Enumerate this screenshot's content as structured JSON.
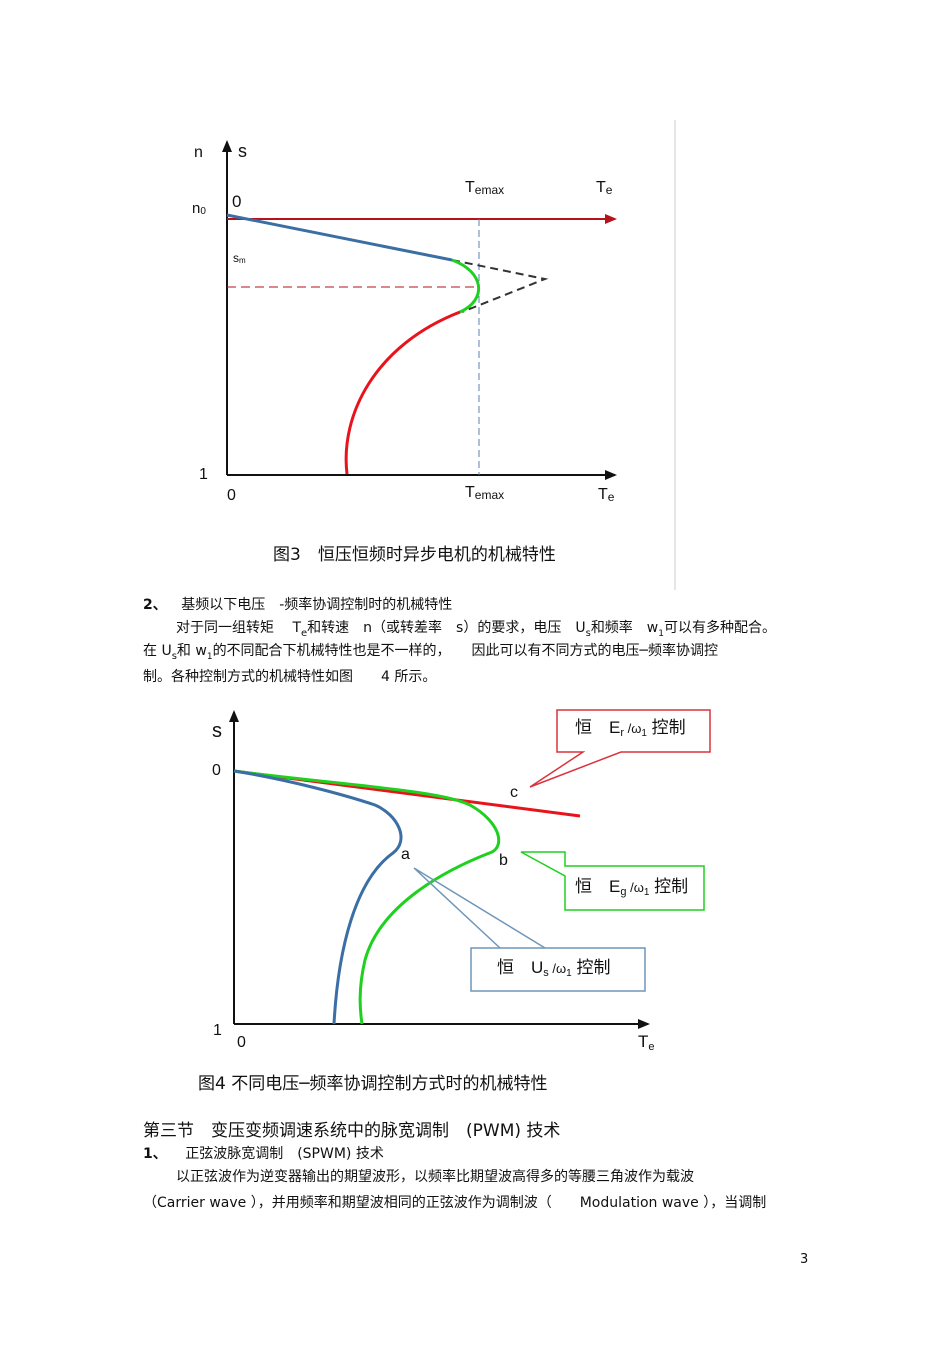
{
  "figure3": {
    "axis_n": "n",
    "axis_s": "s",
    "label_n0": "n",
    "label_n0_sub": "0",
    "label_zero_top": "0",
    "label_temax_top": "T",
    "label_temax_top_sub": "emax",
    "label_te_top": "T",
    "label_te_top_sub": "e",
    "label_sm": "s",
    "label_sm_sub": "m",
    "label_one": "1",
    "label_zero_bottom": "0",
    "label_temax_bottom": "T",
    "label_temax_bottom_sub": "emax",
    "label_te_bottom": "T",
    "label_te_bottom_sub": "e",
    "caption": "图3　恒压恒频时异步电机的机械特性",
    "colors": {
      "axis_arrow": "#b5121b",
      "upper_curve": "#3a6ea5",
      "middle_curve": "#1fd11f",
      "lower_curve": "#e8131b"
    }
  },
  "section2": {
    "heading_num": "2、",
    "heading_text": "基频以下电压　-频率协调控制时的机械特性",
    "line1": "对于同一组转矩　 T",
    "line1_sub1": "e",
    "line1_b": "和转速　n（或转差率　s）的要求，电压　U",
    "line1_sub2": "s",
    "line1_c": "和频率　w",
    "line1_sub3": "1",
    "line1_d": "可以有多种配合。",
    "line2_a": "在  U",
    "line2_sub1": "s",
    "line2_b": "和  w",
    "line2_sub2": "1",
    "line2_c": "的不同配合下机械特性也是不一样的，　　因此可以有不同方式的电压─频率协调控",
    "line3": "制。各种控制方式的机械特性如图　　4 所示。"
  },
  "figure4": {
    "axis_s": "s",
    "label_zero_top": "0",
    "label_one": "1",
    "label_zero_bottom": "0",
    "label_te": "T",
    "label_te_sub": "e",
    "label_a": "a",
    "label_b": "b",
    "label_c": "c",
    "callout_er": {
      "prefix": "恒　E",
      "sub": "r",
      "mid": " /ω",
      "sub2": "1",
      "suffix": " 控制"
    },
    "callout_eg": {
      "prefix": "恒　E",
      "sub": "g",
      "mid": " /ω",
      "sub2": "1",
      "suffix": " 控制"
    },
    "callout_us": {
      "prefix": "恒　U",
      "sub": "s",
      "mid": " /ω",
      "sub2": "1",
      "suffix": " 控制"
    },
    "caption": "图4  不同电压─频率协调控制方式时的机械特性",
    "colors": {
      "curve_a": "#3a6ea5",
      "curve_b": "#1fd11f",
      "curve_c": "#e8131b",
      "callout_red": "#d9343c",
      "callout_green": "#1fd11f",
      "callout_blue": "#6f96b8"
    }
  },
  "section3": {
    "heading": "第三节　变压变频调速系统中的脉宽调制　(PWM) 技术",
    "sub_num": "1、",
    "sub_text": "正弦波脉宽调制　(SPWM) 技术",
    "para_line1": "以正弦波作为逆变器输出的期望波形，以频率比期望波高得多的等腰三角波作为载波",
    "para_line2": "（Carrier wave ），并用频率和期望波相同的正弦波作为调制波（　　Modulation wave ），当调制"
  },
  "page_number": "3"
}
